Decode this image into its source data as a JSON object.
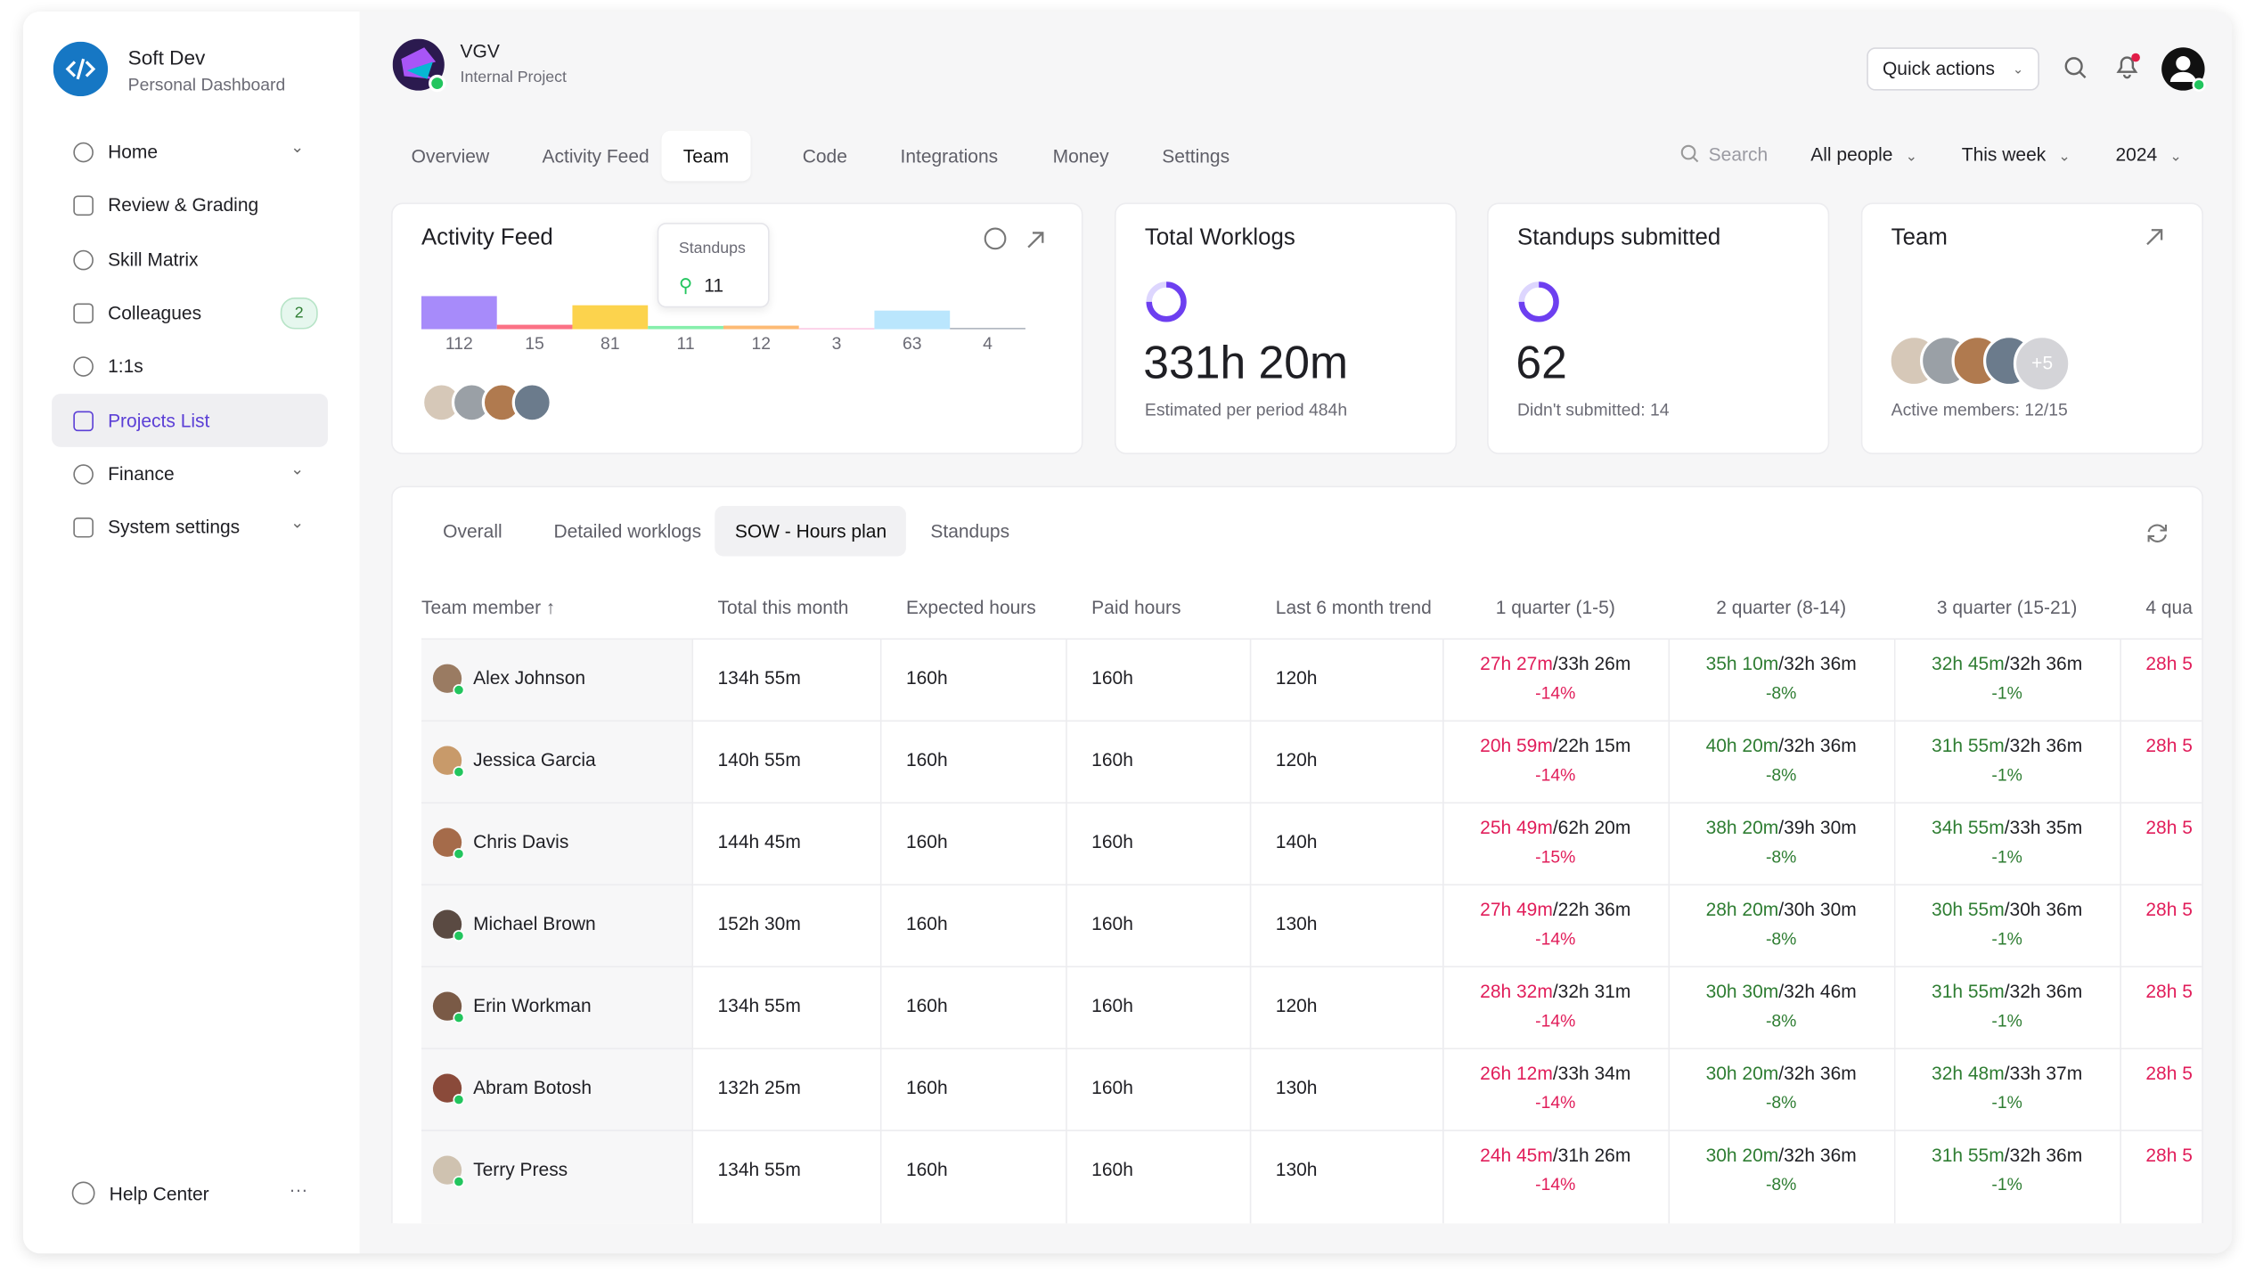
{
  "sidebar": {
    "workspace": "Soft Dev",
    "subtitle": "Personal Dashboard",
    "active_index": 5,
    "nav": [
      {
        "label": "Home",
        "expandable": true
      },
      {
        "label": "Review & Grading"
      },
      {
        "label": "Skill Matrix"
      },
      {
        "label": "Colleagues",
        "badge": "2"
      },
      {
        "label": "1:1s"
      },
      {
        "label": "Projects List"
      },
      {
        "label": "Finance",
        "expandable": true
      },
      {
        "label": "System settings",
        "expandable": true
      }
    ],
    "help": "Help Center"
  },
  "header": {
    "project": "VGV",
    "project_type": "Internal Project",
    "quick_actions": "Quick actions"
  },
  "tabs": [
    "Overview",
    "Activity Feed",
    "Team",
    "Code",
    "Integrations",
    "Money",
    "Settings"
  ],
  "active_tab_index": 2,
  "filters": {
    "search": "Search",
    "people": "All people",
    "period": "This week",
    "year": "2024"
  },
  "activity_feed": {
    "title": "Activity Feed",
    "values": [
      112,
      15,
      81,
      11,
      12,
      3,
      63,
      4
    ],
    "colors": [
      "#a78bfa",
      "#fb7185",
      "#fcd34d",
      "#86efac",
      "#fdba74",
      "#f9a8d4",
      "#bae6fd",
      "#9ca3af"
    ],
    "tooltip": {
      "title": "Standups",
      "value": 11
    }
  },
  "total_worklogs": {
    "title": "Total Worklogs",
    "value": "331h 20m",
    "caption": "Estimated per period 484h"
  },
  "standups": {
    "title": "Standups submitted",
    "value": 62,
    "caption": "Didn't submitted: 14"
  },
  "team": {
    "title": "Team",
    "more": "+5",
    "caption": "Active members: 12/15"
  },
  "table": {
    "subtabs": [
      "Overall",
      "Detailed worklogs",
      "SOW - Hours plan",
      "Standups"
    ],
    "active_subtab_index": 2,
    "columns": [
      "Team member",
      "Total this month",
      "Expected hours",
      "Paid hours",
      "Last 6 month trend",
      "1 quarter (1-5)",
      "2 quarter (8-14)",
      "3 quarter (15-21)",
      "4 qua"
    ],
    "quarter_colors": [
      "#e11d5a",
      "#2e7d32",
      "#2e7d32",
      "#e11d5a"
    ],
    "rows": [
      {
        "name": "Alex Johnson",
        "total": "134h 55m",
        "expected": "160h",
        "paid": "160h",
        "trend": "120h",
        "quarters": [
          {
            "done": "27h 27m",
            "planned": "/33h 26m",
            "change": "-14%"
          },
          {
            "done": "35h 10m",
            "planned": "/32h 36m",
            "change": "-8%"
          },
          {
            "done": "32h 45m",
            "planned": "/32h 36m",
            "change": "-1%"
          },
          {
            "done": "28h 5"
          }
        ]
      },
      {
        "name": "Jessica Garcia",
        "total": "140h 55m",
        "expected": "160h",
        "paid": "160h",
        "trend": "120h",
        "quarters": [
          {
            "done": "20h 59m",
            "planned": "/22h 15m",
            "change": "-14%"
          },
          {
            "done": "40h 20m",
            "planned": "/32h 36m",
            "change": "-8%"
          },
          {
            "done": "31h 55m",
            "planned": "/32h 36m",
            "change": "-1%"
          },
          {
            "done": "28h 5"
          }
        ]
      },
      {
        "name": "Chris Davis",
        "total": "144h 45m",
        "expected": "160h",
        "paid": "160h",
        "trend": "140h",
        "quarters": [
          {
            "done": "25h 49m",
            "planned": "/62h 20m",
            "change": "-15%"
          },
          {
            "done": "38h 20m",
            "planned": "/39h 30m",
            "change": "-8%"
          },
          {
            "done": "34h 55m",
            "planned": "/33h 35m",
            "change": "-1%"
          },
          {
            "done": "28h 5"
          }
        ]
      },
      {
        "name": "Michael Brown",
        "total": "152h 30m",
        "expected": "160h",
        "paid": "160h",
        "trend": "130h",
        "quarters": [
          {
            "done": "27h 49m",
            "planned": "/22h 36m",
            "change": "-14%"
          },
          {
            "done": "28h 20m",
            "planned": "/30h 30m",
            "change": "-8%"
          },
          {
            "done": "30h 55m",
            "planned": "/30h 36m",
            "change": "-1%"
          },
          {
            "done": "28h 5"
          }
        ]
      },
      {
        "name": "Erin Workman",
        "total": "134h 55m",
        "expected": "160h",
        "paid": "160h",
        "trend": "120h",
        "quarters": [
          {
            "done": "28h 32m",
            "planned": "/32h 31m",
            "change": "-14%"
          },
          {
            "done": "30h 30m",
            "planned": "/32h 46m",
            "change": "-8%"
          },
          {
            "done": "31h 55m",
            "planned": "/32h 36m",
            "change": "-1%"
          },
          {
            "done": "28h 5"
          }
        ]
      },
      {
        "name": "Abram Botosh",
        "total": "132h 25m",
        "expected": "160h",
        "paid": "160h",
        "trend": "130h",
        "quarters": [
          {
            "done": "26h 12m",
            "planned": "/33h 34m",
            "change": "-14%"
          },
          {
            "done": "30h 20m",
            "planned": "/32h 36m",
            "change": "-8%"
          },
          {
            "done": "32h 48m",
            "planned": "/33h 37m",
            "change": "-1%"
          },
          {
            "done": "28h 5"
          }
        ]
      },
      {
        "name": "Terry Press",
        "total": "134h 55m",
        "expected": "160h",
        "paid": "160h",
        "trend": "130h",
        "quarters": [
          {
            "done": "24h 45m",
            "planned": "/31h 26m",
            "change": "-14%"
          },
          {
            "done": "30h 20m",
            "planned": "/32h 36m",
            "change": "-8%"
          },
          {
            "done": "31h 55m",
            "planned": "/32h 36m",
            "change": "-1%"
          },
          {
            "done": "28h 5"
          }
        ]
      }
    ]
  }
}
